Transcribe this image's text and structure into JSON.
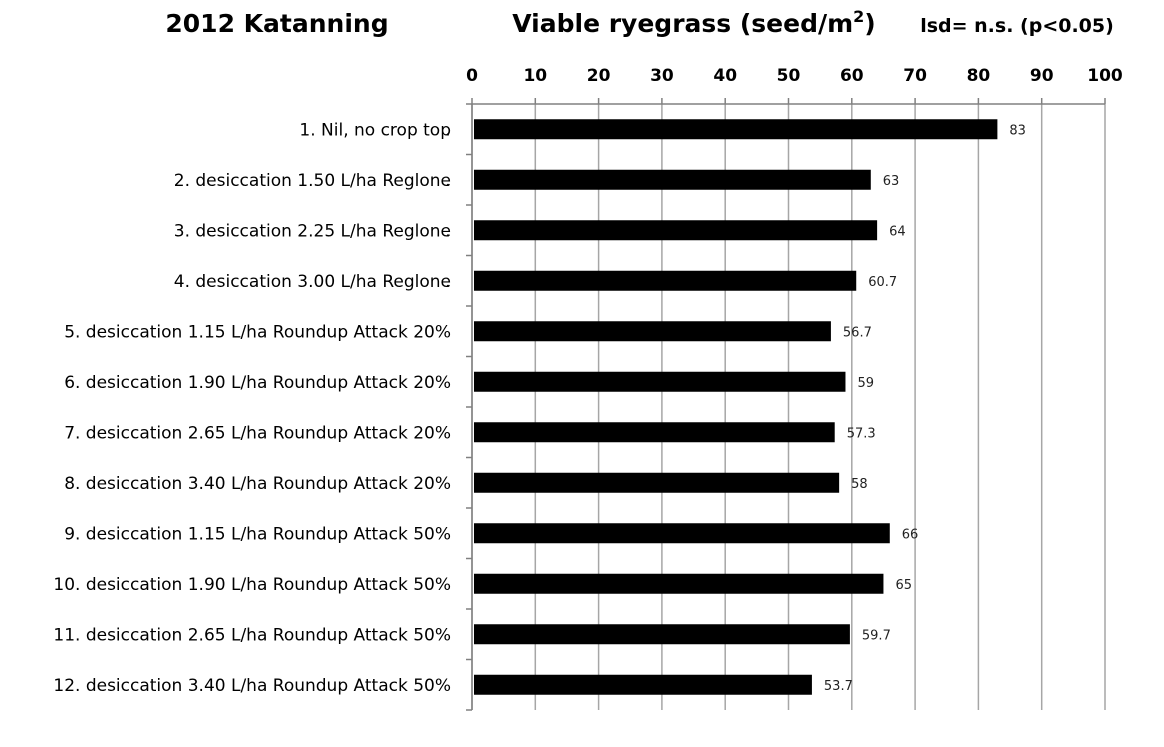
{
  "header": {
    "left_title": "2012 Katanning",
    "center_title": "Viable ryegrass (seed/m",
    "center_title_sup": "2",
    "center_title_end": ")",
    "right_note": "lsd= n.s. (p<0.05)"
  },
  "chart_data": {
    "type": "bar",
    "orientation": "horizontal",
    "title": "Viable ryegrass (seed/m2)",
    "categories": [
      "1. Nil, no crop top",
      "2. desiccation 1.50 L/ha Reglone",
      "3. desiccation 2.25 L/ha Reglone",
      "4. desiccation 3.00 L/ha Reglone",
      "5. desiccation 1.15 L/ha Roundup Attack 20%",
      "6. desiccation 1.90 L/ha Roundup Attack 20%",
      "7. desiccation 2.65 L/ha Roundup Attack 20%",
      "8. desiccation 3.40 L/ha Roundup Attack 20%",
      "9. desiccation 1.15 L/ha Roundup Attack 50%",
      "10. desiccation 1.90 L/ha Roundup Attack 50%",
      "11. desiccation 2.65 L/ha Roundup Attack 50%",
      "12. desiccation 3.40 L/ha Roundup Attack 50%"
    ],
    "category_markers": [
      ".",
      ".",
      ".",
      ".",
      "",
      "",
      "",
      "",
      "",
      "",
      "",
      ""
    ],
    "values": [
      83,
      63,
      64,
      60.7,
      56.7,
      59,
      57.3,
      58,
      66,
      65,
      59.7,
      53.7
    ],
    "data_labels": [
      "83",
      "63",
      "64",
      "60.7",
      "56.7",
      "59",
      "57.3",
      "58",
      "66",
      "65",
      "59.7",
      "53.7"
    ],
    "xlim": [
      0,
      100
    ],
    "x_ticks": [
      0,
      10,
      20,
      30,
      40,
      50,
      60,
      70,
      80,
      90,
      100
    ],
    "x_axis_position": "top",
    "grid": true,
    "bar_color": "#000000",
    "grid_color": "#a6a6a6"
  }
}
